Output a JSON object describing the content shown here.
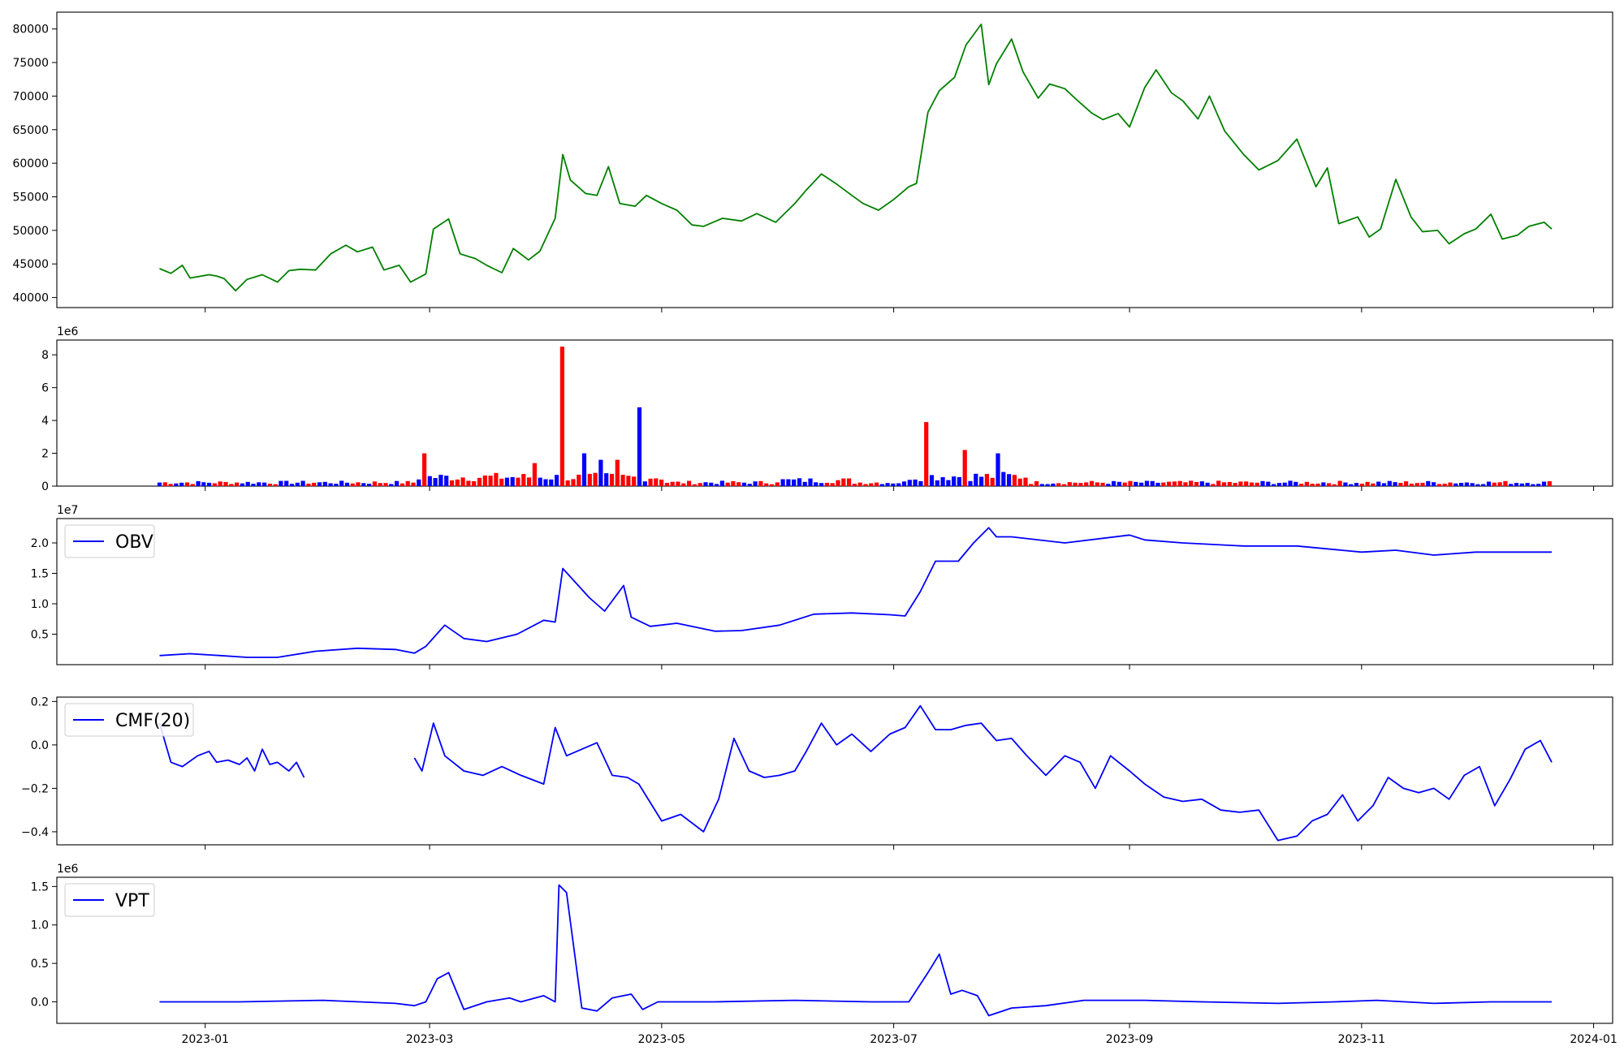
{
  "chart_data": [
    {
      "type": "line",
      "panel": "price",
      "color": "#008000",
      "ylim": [
        38500,
        82500
      ],
      "yticks": [
        40000,
        45000,
        50000,
        55000,
        60000,
        65000,
        70000,
        75000,
        80000
      ],
      "ytick_labels": [
        "40000",
        "45000",
        "50000",
        "55000",
        "60000",
        "65000",
        "70000",
        "75000",
        "80000"
      ],
      "x": [
        "2022-12-20",
        "2022-12-23",
        "2022-12-26",
        "2022-12-28",
        "2023-01-02",
        "2023-01-04",
        "2023-01-06",
        "2023-01-09",
        "2023-01-12",
        "2023-01-16",
        "2023-01-20",
        "2023-01-23",
        "2023-01-26",
        "2023-01-30",
        "2023-02-03",
        "2023-02-07",
        "2023-02-10",
        "2023-02-14",
        "2023-02-17",
        "2023-02-21",
        "2023-02-24",
        "2023-02-28",
        "2023-03-02",
        "2023-03-06",
        "2023-03-09",
        "2023-03-13",
        "2023-03-16",
        "2023-03-20",
        "2023-03-23",
        "2023-03-27",
        "2023-03-30",
        "2023-04-03",
        "2023-04-05",
        "2023-04-07",
        "2023-04-11",
        "2023-04-14",
        "2023-04-17",
        "2023-04-20",
        "2023-04-24",
        "2023-04-27",
        "2023-05-01",
        "2023-05-05",
        "2023-05-09",
        "2023-05-12",
        "2023-05-17",
        "2023-05-22",
        "2023-05-26",
        "2023-05-31",
        "2023-06-05",
        "2023-06-08",
        "2023-06-12",
        "2023-06-16",
        "2023-06-20",
        "2023-06-23",
        "2023-06-27",
        "2023-07-01",
        "2023-07-05",
        "2023-07-07",
        "2023-07-10",
        "2023-07-13",
        "2023-07-17",
        "2023-07-20",
        "2023-07-24",
        "2023-07-26",
        "2023-07-28",
        "2023-08-01",
        "2023-08-04",
        "2023-08-08",
        "2023-08-11",
        "2023-08-15",
        "2023-08-18",
        "2023-08-22",
        "2023-08-25",
        "2023-08-29",
        "2023-09-01",
        "2023-09-05",
        "2023-09-08",
        "2023-09-12",
        "2023-09-15",
        "2023-09-19",
        "2023-09-22",
        "2023-09-26",
        "2023-10-01",
        "2023-10-05",
        "2023-10-10",
        "2023-10-15",
        "2023-10-20",
        "2023-10-23",
        "2023-10-26",
        "2023-10-31",
        "2023-11-03",
        "2023-11-06",
        "2023-11-10",
        "2023-11-14",
        "2023-11-17",
        "2023-11-21",
        "2023-11-24",
        "2023-11-28",
        "2023-12-01",
        "2023-12-05",
        "2023-12-08",
        "2023-12-12",
        "2023-12-15",
        "2023-12-19",
        "2023-12-21"
      ],
      "y": [
        44300,
        43600,
        44800,
        42900,
        43400,
        43200,
        42800,
        41000,
        42700,
        43400,
        42300,
        44000,
        44200,
        44100,
        46500,
        47800,
        46800,
        47500,
        44100,
        44800,
        42300,
        43500,
        50200,
        51700,
        46500,
        45800,
        44800,
        43700,
        47300,
        45600,
        46900,
        51800,
        61300,
        57500,
        55500,
        55200,
        59500,
        54000,
        53600,
        55200,
        54000,
        53000,
        50800,
        50600,
        51800,
        51400,
        52500,
        51200,
        54000,
        56000,
        58400,
        56900,
        55200,
        54000,
        53000,
        54600,
        56500,
        57000,
        67600,
        70800,
        72800,
        77600,
        80700,
        71700,
        74800,
        78500,
        73600,
        69700,
        71800,
        71100,
        69500,
        67500,
        66500,
        67400,
        65400,
        71300,
        73900,
        70500,
        69300,
        66600,
        70000,
        64800,
        61300,
        59000,
        60400,
        63600,
        56500,
        59300,
        51000,
        52000,
        49000,
        50200,
        57600,
        52000,
        49800,
        50000,
        48000,
        49500,
        50200,
        52400,
        48700,
        49300,
        50600,
        51200,
        50200
      ]
    },
    {
      "type": "bar",
      "panel": "volume",
      "exponent_label": "1e6",
      "ylim": [
        0,
        8.9
      ],
      "yticks": [
        0,
        2,
        4,
        6,
        8
      ],
      "ytick_labels": [
        "0",
        "2",
        "4",
        "6",
        "8"
      ],
      "colors": {
        "up": "#0000ff",
        "down": "#ff0000",
        "flat": "#000000"
      },
      "spikes": [
        {
          "x": "2023-04-05",
          "value": 8.5,
          "dir": "down"
        },
        {
          "x": "2023-04-25",
          "value": 4.8,
          "dir": "up"
        },
        {
          "x": "2023-07-10",
          "value": 3.9,
          "dir": "down"
        },
        {
          "x": "2023-02-28",
          "value": 2.0,
          "dir": "down"
        },
        {
          "x": "2023-07-20",
          "value": 2.2,
          "dir": "down"
        },
        {
          "x": "2023-07-28",
          "value": 2.0,
          "dir": "up"
        },
        {
          "x": "2023-04-10",
          "value": 2.0,
          "dir": "up"
        },
        {
          "x": "2023-04-15",
          "value": 1.6,
          "dir": "up"
        },
        {
          "x": "2023-04-20",
          "value": 1.6,
          "dir": "down"
        },
        {
          "x": "2023-03-28",
          "value": 1.4,
          "dir": "down"
        }
      ]
    },
    {
      "type": "line",
      "panel": "obv",
      "legend": "OBV",
      "exponent_label": "1e7",
      "color": "#0000ff",
      "ylim": [
        0.0,
        2.4
      ],
      "yticks": [
        0.5,
        1.0,
        1.5,
        2.0
      ],
      "ytick_labels": [
        "0.5",
        "1.0",
        "1.5",
        "2.0"
      ],
      "x": [
        "2022-12-20",
        "2022-12-28",
        "2023-01-05",
        "2023-01-12",
        "2023-01-20",
        "2023-01-30",
        "2023-02-10",
        "2023-02-20",
        "2023-02-25",
        "2023-02-28",
        "2023-03-05",
        "2023-03-10",
        "2023-03-16",
        "2023-03-24",
        "2023-03-31",
        "2023-04-03",
        "2023-04-05",
        "2023-04-12",
        "2023-04-16",
        "2023-04-21",
        "2023-04-23",
        "2023-04-28",
        "2023-05-05",
        "2023-05-15",
        "2023-05-22",
        "2023-06-01",
        "2023-06-10",
        "2023-06-20",
        "2023-06-30",
        "2023-07-04",
        "2023-07-08",
        "2023-07-12",
        "2023-07-18",
        "2023-07-22",
        "2023-07-26",
        "2023-07-28",
        "2023-08-01",
        "2023-08-15",
        "2023-09-01",
        "2023-09-05",
        "2023-09-15",
        "2023-10-01",
        "2023-10-15",
        "2023-11-01",
        "2023-11-10",
        "2023-11-20",
        "2023-12-01",
        "2023-12-10",
        "2023-12-21"
      ],
      "y": [
        0.15,
        0.18,
        0.15,
        0.12,
        0.12,
        0.22,
        0.27,
        0.25,
        0.19,
        0.3,
        0.65,
        0.43,
        0.38,
        0.5,
        0.73,
        0.7,
        1.58,
        1.1,
        0.88,
        1.3,
        0.78,
        0.63,
        0.68,
        0.55,
        0.56,
        0.65,
        0.83,
        0.85,
        0.82,
        0.8,
        1.2,
        1.7,
        1.7,
        2.0,
        2.25,
        2.1,
        2.1,
        2.0,
        2.13,
        2.05,
        2.0,
        1.95,
        1.95,
        1.85,
        1.88,
        1.8,
        1.85,
        1.85,
        1.85
      ]
    },
    {
      "type": "line",
      "panel": "cmf",
      "legend": "CMF(20)",
      "color": "#0000ff",
      "ylim": [
        -0.46,
        0.22
      ],
      "yticks": [
        -0.4,
        -0.2,
        0.0,
        0.2
      ],
      "ytick_labels": [
        "−0.4",
        "−0.2",
        "0.0",
        "0.2"
      ],
      "segments": [
        {
          "x": [
            "2022-12-20",
            "2022-12-23",
            "2022-12-26",
            "2022-12-30",
            "2023-01-02",
            "2023-01-04",
            "2023-01-07",
            "2023-01-10",
            "2023-01-12",
            "2023-01-14",
            "2023-01-16",
            "2023-01-18",
            "2023-01-20",
            "2023-01-23",
            "2023-01-25",
            "2023-01-27"
          ],
          "y": [
            0.1,
            -0.08,
            -0.1,
            -0.05,
            -0.03,
            -0.08,
            -0.07,
            -0.09,
            -0.06,
            -0.12,
            -0.02,
            -0.09,
            -0.08,
            -0.12,
            -0.08,
            -0.15
          ]
        },
        {
          "x": [
            "2023-02-25",
            "2023-02-27",
            "2023-03-02",
            "2023-03-05",
            "2023-03-10",
            "2023-03-15",
            "2023-03-20",
            "2023-03-25",
            "2023-03-31",
            "2023-04-03",
            "2023-04-06",
            "2023-04-10",
            "2023-04-14",
            "2023-04-18",
            "2023-04-22",
            "2023-04-25",
            "2023-05-01",
            "2023-05-06",
            "2023-05-12",
            "2023-05-16",
            "2023-05-20",
            "2023-05-24",
            "2023-05-28",
            "2023-06-01",
            "2023-06-05",
            "2023-06-08",
            "2023-06-12",
            "2023-06-16",
            "2023-06-20",
            "2023-06-25",
            "2023-06-30",
            "2023-07-04",
            "2023-07-08",
            "2023-07-12",
            "2023-07-16",
            "2023-07-20",
            "2023-07-24",
            "2023-07-28",
            "2023-08-01",
            "2023-08-05",
            "2023-08-10",
            "2023-08-15",
            "2023-08-19",
            "2023-08-23",
            "2023-08-27",
            "2023-09-01",
            "2023-09-05",
            "2023-09-10",
            "2023-09-15",
            "2023-09-20",
            "2023-09-25",
            "2023-09-30",
            "2023-10-05",
            "2023-10-10",
            "2023-10-15",
            "2023-10-19",
            "2023-10-23",
            "2023-10-27",
            "2023-10-31",
            "2023-11-04",
            "2023-11-08",
            "2023-11-12",
            "2023-11-16",
            "2023-11-20",
            "2023-11-24",
            "2023-11-28",
            "2023-12-02",
            "2023-12-06",
            "2023-12-10",
            "2023-12-14",
            "2023-12-18",
            "2023-12-21"
          ],
          "y": [
            -0.06,
            -0.12,
            0.1,
            -0.05,
            -0.12,
            -0.14,
            -0.1,
            -0.14,
            -0.18,
            0.08,
            -0.05,
            -0.02,
            0.01,
            -0.14,
            -0.15,
            -0.18,
            -0.35,
            -0.32,
            -0.4,
            -0.25,
            0.03,
            -0.12,
            -0.15,
            -0.14,
            -0.12,
            -0.03,
            0.1,
            0.0,
            0.05,
            -0.03,
            0.05,
            0.08,
            0.18,
            0.07,
            0.07,
            0.09,
            0.1,
            0.02,
            0.03,
            -0.05,
            -0.14,
            -0.05,
            -0.08,
            -0.2,
            -0.05,
            -0.12,
            -0.18,
            -0.24,
            -0.26,
            -0.25,
            -0.3,
            -0.31,
            -0.3,
            -0.44,
            -0.42,
            -0.35,
            -0.32,
            -0.23,
            -0.35,
            -0.28,
            -0.15,
            -0.2,
            -0.22,
            -0.2,
            -0.25,
            -0.14,
            -0.1,
            -0.28,
            -0.16,
            -0.02,
            0.02,
            -0.08
          ]
        }
      ]
    },
    {
      "type": "line",
      "panel": "vpt",
      "legend": "VPT",
      "exponent_label": "1e6",
      "color": "#0000ff",
      "ylim": [
        -0.28,
        1.62
      ],
      "yticks": [
        0.0,
        0.5,
        1.0,
        1.5
      ],
      "ytick_labels": [
        "0.0",
        "0.5",
        "1.0",
        "1.5"
      ],
      "xlim": [
        "2022-11-23",
        "2024-01-06"
      ],
      "xticks": [
        "2023-01-01",
        "2023-03-01",
        "2023-05-01",
        "2023-07-01",
        "2023-09-01",
        "2023-11-01",
        "2024-01-01"
      ],
      "xtick_labels": [
        "2023-01",
        "2023-03",
        "2023-05",
        "2023-07",
        "2023-09",
        "2023-11",
        "2024-01"
      ],
      "x": [
        "2022-12-20",
        "2023-01-10",
        "2023-02-01",
        "2023-02-20",
        "2023-02-25",
        "2023-02-28",
        "2023-03-03",
        "2023-03-06",
        "2023-03-10",
        "2023-03-16",
        "2023-03-22",
        "2023-03-25",
        "2023-03-31",
        "2023-04-03",
        "2023-04-04",
        "2023-04-06",
        "2023-04-10",
        "2023-04-14",
        "2023-04-18",
        "2023-04-23",
        "2023-04-26",
        "2023-04-30",
        "2023-05-15",
        "2023-06-05",
        "2023-06-25",
        "2023-07-05",
        "2023-07-10",
        "2023-07-13",
        "2023-07-16",
        "2023-07-19",
        "2023-07-23",
        "2023-07-26",
        "2023-08-01",
        "2023-08-10",
        "2023-08-20",
        "2023-09-05",
        "2023-09-20",
        "2023-10-10",
        "2023-10-25",
        "2023-11-05",
        "2023-11-20",
        "2023-12-05",
        "2023-12-21"
      ],
      "y": [
        0.0,
        0.0,
        0.02,
        -0.02,
        -0.05,
        0.0,
        0.3,
        0.38,
        -0.1,
        0.0,
        0.05,
        0.0,
        0.08,
        0.0,
        1.52,
        1.42,
        -0.08,
        -0.12,
        0.05,
        0.1,
        -0.1,
        0.0,
        0.0,
        0.02,
        0.0,
        0.0,
        0.38,
        0.62,
        0.1,
        0.15,
        0.08,
        -0.18,
        -0.08,
        -0.05,
        0.02,
        0.02,
        0.0,
        -0.02,
        0.0,
        0.02,
        -0.02,
        0.0,
        0.0
      ]
    }
  ]
}
